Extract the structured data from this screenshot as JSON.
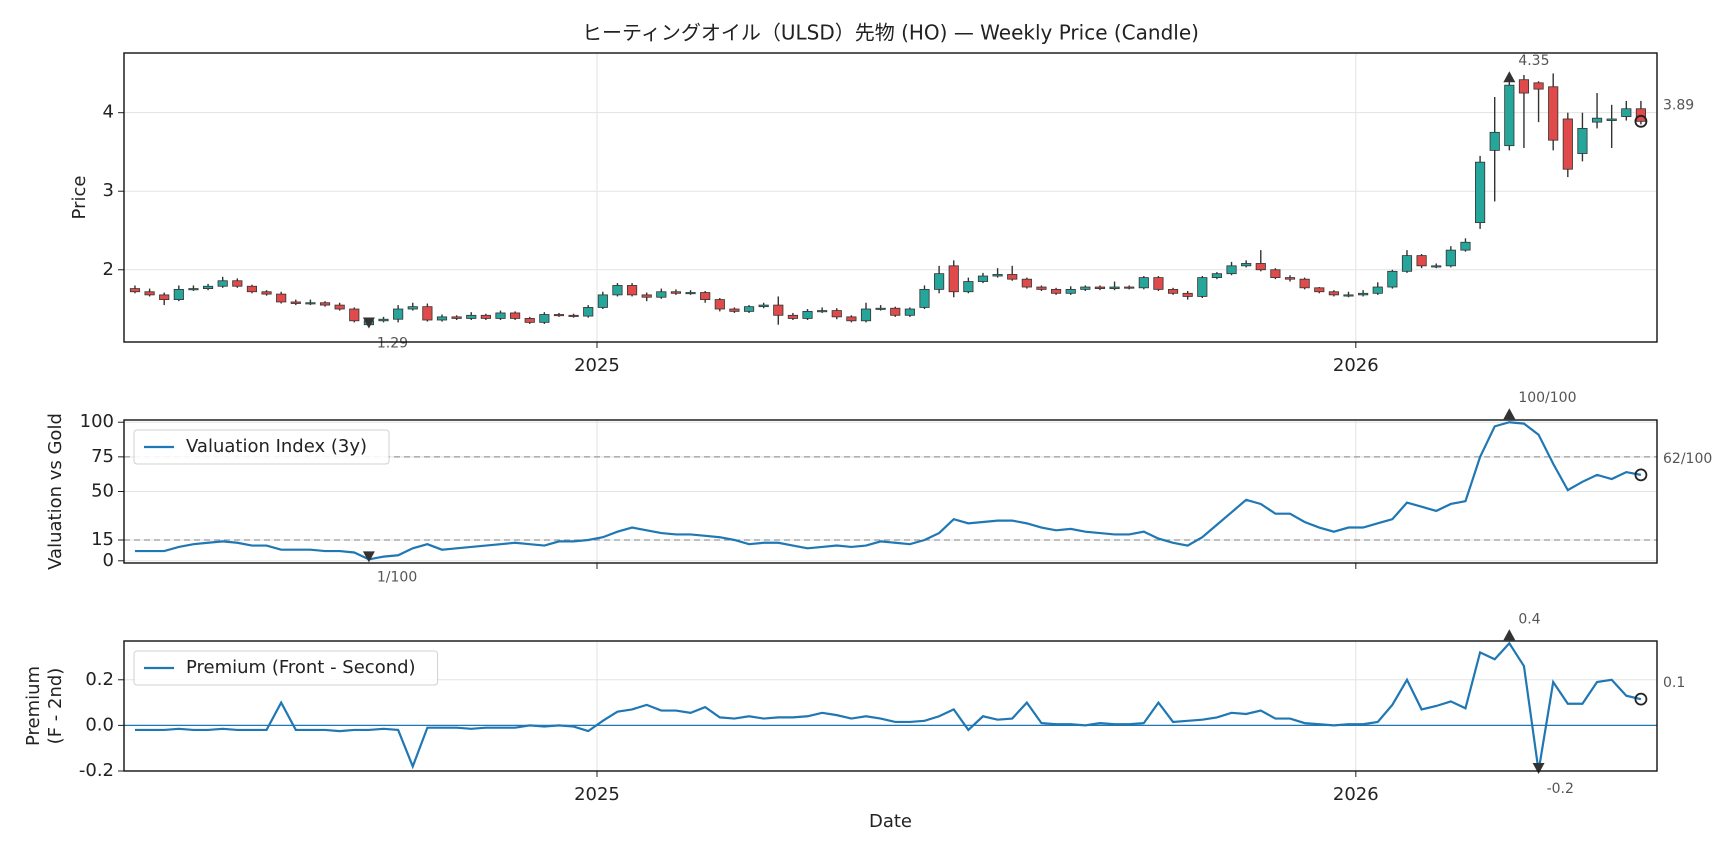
{
  "chart_data": [
    {
      "type": "candlestick",
      "title": "ヒーティングオイル（ULSD）先物 (HO) — Weekly Price (Candle)",
      "ylabel": "Price",
      "x": [
        0,
        1,
        2,
        3,
        4,
        5,
        6,
        7,
        8,
        9,
        10,
        11,
        12,
        13,
        14,
        15,
        16,
        17,
        18,
        19,
        20,
        21,
        22,
        23,
        24,
        25,
        26,
        27,
        28,
        29,
        30,
        31,
        32,
        33,
        34,
        35,
        36,
        37,
        38,
        39,
        40,
        41,
        42,
        43,
        44,
        45,
        46,
        47,
        48,
        49,
        50,
        51,
        52,
        53,
        54,
        55,
        56,
        57,
        58,
        59,
        60,
        61,
        62,
        63,
        64,
        65,
        66,
        67,
        68,
        69,
        70,
        71,
        72,
        73,
        74,
        75,
        76,
        77,
        78,
        79,
        80,
        81,
        82,
        83,
        84,
        85,
        86,
        87,
        88,
        89,
        90,
        91,
        92,
        93,
        94,
        95,
        96,
        97,
        98,
        99,
        100,
        101,
        102,
        103
      ],
      "open": [
        1.76,
        1.72,
        1.68,
        1.62,
        1.75,
        1.76,
        1.79,
        1.86,
        1.79,
        1.72,
        1.69,
        1.59,
        1.57,
        1.58,
        1.55,
        1.5,
        1.3,
        1.35,
        1.37,
        1.5,
        1.53,
        1.36,
        1.4,
        1.38,
        1.42,
        1.38,
        1.45,
        1.38,
        1.33,
        1.43,
        1.42,
        1.41,
        1.52,
        1.68,
        1.8,
        1.68,
        1.65,
        1.72,
        1.7,
        1.71,
        1.62,
        1.5,
        1.47,
        1.53,
        1.55,
        1.42,
        1.38,
        1.47,
        1.48,
        1.4,
        1.35,
        1.5,
        1.51,
        1.42,
        1.52,
        1.75,
        2.05,
        1.72,
        1.85,
        1.92,
        1.94,
        1.88,
        1.78,
        1.75,
        1.7,
        1.75,
        1.78,
        1.76,
        1.78,
        1.77,
        1.9,
        1.75,
        1.7,
        1.66,
        1.9,
        1.95,
        2.05,
        2.08,
        2.0,
        1.9,
        1.88,
        1.77,
        1.72,
        1.68,
        1.68,
        1.7,
        1.78,
        1.98,
        2.18,
        2.05,
        2.05,
        2.25,
        2.6,
        3.52,
        3.58,
        4.42,
        4.38,
        4.33,
        3.92,
        3.48,
        3.88,
        3.9,
        3.95,
        4.05
      ],
      "high": [
        1.8,
        1.76,
        1.71,
        1.8,
        1.8,
        1.82,
        1.91,
        1.89,
        1.81,
        1.74,
        1.72,
        1.62,
        1.62,
        1.6,
        1.58,
        1.52,
        1.38,
        1.4,
        1.55,
        1.58,
        1.57,
        1.43,
        1.42,
        1.46,
        1.44,
        1.48,
        1.47,
        1.4,
        1.46,
        1.45,
        1.44,
        1.55,
        1.72,
        1.83,
        1.83,
        1.71,
        1.76,
        1.75,
        1.74,
        1.73,
        1.64,
        1.52,
        1.55,
        1.58,
        1.66,
        1.45,
        1.5,
        1.52,
        1.51,
        1.42,
        1.58,
        1.55,
        1.53,
        1.52,
        1.8,
        2.05,
        2.12,
        1.9,
        1.96,
        2.02,
        2.05,
        1.9,
        1.8,
        1.77,
        1.79,
        1.8,
        1.8,
        1.85,
        1.8,
        1.92,
        1.92,
        1.77,
        1.73,
        1.92,
        1.97,
        2.1,
        2.12,
        2.25,
        2.02,
        1.93,
        1.9,
        1.78,
        1.74,
        1.72,
        1.74,
        1.84,
        2.0,
        2.25,
        2.2,
        2.08,
        2.3,
        2.4,
        3.45,
        4.2,
        4.42,
        4.48,
        4.4,
        4.5,
        4.0,
        4.0,
        4.25,
        4.1,
        4.15,
        4.15
      ],
      "low": [
        1.7,
        1.66,
        1.55,
        1.6,
        1.73,
        1.74,
        1.77,
        1.77,
        1.7,
        1.67,
        1.57,
        1.55,
        1.55,
        1.53,
        1.48,
        1.33,
        1.29,
        1.33,
        1.33,
        1.48,
        1.34,
        1.34,
        1.36,
        1.36,
        1.36,
        1.36,
        1.36,
        1.31,
        1.31,
        1.4,
        1.39,
        1.39,
        1.5,
        1.66,
        1.66,
        1.6,
        1.63,
        1.68,
        1.68,
        1.58,
        1.47,
        1.45,
        1.45,
        1.51,
        1.3,
        1.36,
        1.36,
        1.45,
        1.37,
        1.33,
        1.33,
        1.48,
        1.4,
        1.4,
        1.5,
        1.7,
        1.65,
        1.7,
        1.83,
        1.9,
        1.86,
        1.76,
        1.73,
        1.68,
        1.68,
        1.73,
        1.74,
        1.74,
        1.75,
        1.75,
        1.73,
        1.68,
        1.62,
        1.64,
        1.88,
        1.93,
        2.03,
        1.98,
        1.88,
        1.85,
        1.75,
        1.7,
        1.66,
        1.65,
        1.66,
        1.68,
        1.76,
        1.96,
        2.02,
        2.02,
        2.03,
        2.23,
        2.52,
        2.87,
        3.52,
        3.55,
        3.88,
        3.52,
        3.18,
        3.38,
        3.8,
        3.55,
        3.9,
        3.85
      ],
      "close": [
        1.72,
        1.68,
        1.62,
        1.75,
        1.76,
        1.79,
        1.86,
        1.79,
        1.72,
        1.69,
        1.59,
        1.57,
        1.58,
        1.55,
        1.5,
        1.35,
        1.35,
        1.37,
        1.5,
        1.53,
        1.36,
        1.4,
        1.38,
        1.42,
        1.38,
        1.45,
        1.38,
        1.33,
        1.43,
        1.42,
        1.41,
        1.52,
        1.68,
        1.8,
        1.68,
        1.65,
        1.72,
        1.7,
        1.71,
        1.62,
        1.5,
        1.47,
        1.53,
        1.55,
        1.42,
        1.38,
        1.47,
        1.48,
        1.4,
        1.35,
        1.5,
        1.51,
        1.42,
        1.5,
        1.75,
        1.95,
        1.72,
        1.85,
        1.92,
        1.94,
        1.88,
        1.78,
        1.75,
        1.7,
        1.75,
        1.78,
        1.76,
        1.78,
        1.77,
        1.9,
        1.75,
        1.7,
        1.66,
        1.9,
        1.95,
        2.05,
        2.08,
        2.0,
        1.9,
        1.88,
        1.77,
        1.72,
        1.68,
        1.68,
        1.7,
        1.78,
        1.98,
        2.18,
        2.05,
        2.05,
        2.25,
        2.35,
        3.37,
        3.75,
        4.35,
        4.25,
        4.3,
        3.65,
        3.28,
        3.8,
        3.93,
        3.92,
        4.05,
        3.89
      ],
      "up_color": "#26a69a",
      "down_color": "#e04a4a",
      "wick_color": "#333333",
      "xlim": [
        -0.75,
        104.1
      ],
      "xticks": [
        {
          "value": 31.6,
          "label": "2025"
        },
        {
          "value": 83.5,
          "label": "2026"
        }
      ],
      "ylim": [
        1.08,
        4.76
      ],
      "yticks": [
        2,
        3,
        4
      ],
      "grid": true,
      "annotations": [
        {
          "label": "4.35",
          "x": 94,
          "value": 4.35,
          "marker": "up"
        },
        {
          "label": "1.29",
          "x": 16,
          "value": 1.29,
          "marker": "down"
        },
        {
          "label": "3.89",
          "x": 103,
          "value": 3.89,
          "marker": "circle"
        }
      ]
    },
    {
      "type": "line",
      "ylabel": "Valuation vs Gold",
      "x": [
        0,
        1,
        2,
        3,
        4,
        5,
        6,
        7,
        8,
        9,
        10,
        11,
        12,
        13,
        14,
        15,
        16,
        17,
        18,
        19,
        20,
        21,
        22,
        23,
        24,
        25,
        26,
        27,
        28,
        29,
        30,
        31,
        32,
        33,
        34,
        35,
        36,
        37,
        38,
        39,
        40,
        41,
        42,
        43,
        44,
        45,
        46,
        47,
        48,
        49,
        50,
        51,
        52,
        53,
        54,
        55,
        56,
        57,
        58,
        59,
        60,
        61,
        62,
        63,
        64,
        65,
        66,
        67,
        68,
        69,
        70,
        71,
        72,
        73,
        74,
        75,
        76,
        77,
        78,
        79,
        80,
        81,
        82,
        83,
        84,
        85,
        86,
        87,
        88,
        89,
        90,
        91,
        92,
        93,
        94,
        95,
        96,
        97,
        98,
        99,
        100,
        101,
        102,
        103
      ],
      "series": [
        {
          "name": "Valuation Index (3y)",
          "color": "#1f77b4",
          "values": [
            7,
            7,
            7,
            10,
            12,
            13,
            14,
            13,
            11,
            11,
            8,
            8,
            8,
            7,
            7,
            6,
            1,
            3,
            4,
            9,
            12,
            8,
            9,
            10,
            11,
            12,
            13,
            12,
            11,
            14,
            14,
            15,
            17,
            21,
            24,
            22,
            20,
            19,
            19,
            18,
            17,
            15,
            12,
            13,
            13,
            11,
            9,
            10,
            11,
            10,
            11,
            14,
            13,
            12,
            15,
            20,
            30,
            27,
            28,
            29,
            29,
            27,
            24,
            22,
            23,
            21,
            20,
            19,
            19,
            21,
            16,
            13,
            11,
            17,
            26,
            35,
            44,
            41,
            34,
            34,
            28,
            24,
            21,
            24,
            24,
            27,
            30,
            42,
            39,
            36,
            41,
            43,
            75,
            97,
            100,
            99,
            91,
            70,
            51,
            57,
            62,
            59,
            64,
            62
          ]
        }
      ],
      "xlim": [
        -0.75,
        104.1
      ],
      "xticks": [
        31.6,
        83.5
      ],
      "show_xtick_labels": false,
      "ylim": [
        -1.6,
        101.6
      ],
      "yticks": [
        0,
        15,
        50,
        75,
        100
      ],
      "grid": true,
      "legend": "upper left",
      "hlines": [
        {
          "value": 75,
          "color": "#999999",
          "style": "dashed"
        },
        {
          "value": 15,
          "color": "#999999",
          "style": "dashed"
        }
      ],
      "annotations": [
        {
          "label": "100/100",
          "x": 94,
          "value": 100,
          "marker": "up"
        },
        {
          "label": "1/100",
          "x": 16,
          "value": 1,
          "marker": "down"
        },
        {
          "label": "62/100",
          "x": 103,
          "value": 62,
          "marker": "circle"
        }
      ]
    },
    {
      "type": "line",
      "ylabel": [
        "Premium",
        "(F - 2nd)"
      ],
      "xlabel": "Date",
      "x": [
        0,
        1,
        2,
        3,
        4,
        5,
        6,
        7,
        8,
        9,
        10,
        11,
        12,
        13,
        14,
        15,
        16,
        17,
        18,
        19,
        20,
        21,
        22,
        23,
        24,
        25,
        26,
        27,
        28,
        29,
        30,
        31,
        32,
        33,
        34,
        35,
        36,
        37,
        38,
        39,
        40,
        41,
        42,
        43,
        44,
        45,
        46,
        47,
        48,
        49,
        50,
        51,
        52,
        53,
        54,
        55,
        56,
        57,
        58,
        59,
        60,
        61,
        62,
        63,
        64,
        65,
        66,
        67,
        68,
        69,
        70,
        71,
        72,
        73,
        74,
        75,
        76,
        77,
        78,
        79,
        80,
        81,
        82,
        83,
        84,
        85,
        86,
        87,
        88,
        89,
        90,
        91,
        92,
        93,
        94,
        95,
        96,
        97,
        98,
        99,
        100,
        101,
        102,
        103
      ],
      "series": [
        {
          "name": "Premium (Front - Second)",
          "color": "#1f77b4",
          "values": [
            -0.02,
            -0.02,
            -0.02,
            -0.015,
            -0.02,
            -0.02,
            -0.015,
            -0.02,
            -0.02,
            -0.02,
            0.1,
            -0.02,
            -0.02,
            -0.02,
            -0.025,
            -0.02,
            -0.02,
            -0.015,
            -0.02,
            -0.18,
            -0.01,
            -0.01,
            -0.01,
            -0.015,
            -0.01,
            -0.01,
            -0.01,
            0.0,
            -0.005,
            0.0,
            -0.005,
            -0.025,
            0.02,
            0.06,
            0.07,
            0.09,
            0.065,
            0.065,
            0.055,
            0.08,
            0.035,
            0.03,
            0.04,
            0.03,
            0.035,
            0.035,
            0.04,
            0.055,
            0.045,
            0.03,
            0.04,
            0.03,
            0.015,
            0.015,
            0.02,
            0.04,
            0.07,
            -0.02,
            0.04,
            0.025,
            0.03,
            0.1,
            0.01,
            0.005,
            0.005,
            0.0,
            0.01,
            0.005,
            0.005,
            0.01,
            0.1,
            0.015,
            0.02,
            0.025,
            0.035,
            0.055,
            0.05,
            0.065,
            0.03,
            0.03,
            0.01,
            0.005,
            0.0,
            0.005,
            0.005,
            0.015,
            0.09,
            0.2,
            0.07,
            0.085,
            0.105,
            0.075,
            0.32,
            0.29,
            0.36,
            0.26,
            -0.2,
            0.19,
            0.095,
            0.095,
            0.19,
            0.2,
            0.13,
            0.115
          ]
        }
      ],
      "xlim": [
        -0.75,
        104.1
      ],
      "xticks": [
        {
          "value": 31.6,
          "label": "2025"
        },
        {
          "value": 83.5,
          "label": "2026"
        }
      ],
      "ylim": [
        -0.2,
        0.37
      ],
      "yticks": [
        -0.2,
        {
          "value": 0,
          "label": "0.0"
        },
        0.2
      ],
      "grid": true,
      "legend": "upper left",
      "hlines": [
        {
          "value": 0,
          "color": "#1f77b4",
          "style": "solid"
        }
      ],
      "annotations": [
        {
          "label": "0.4",
          "x": 94,
          "value": 0.36,
          "marker": "up"
        },
        {
          "label": "-0.2",
          "x": 96,
          "value": -0.2,
          "marker": "down"
        },
        {
          "label": "0.1",
          "x": 103,
          "value": 0.115,
          "marker": "circle"
        }
      ]
    }
  ]
}
